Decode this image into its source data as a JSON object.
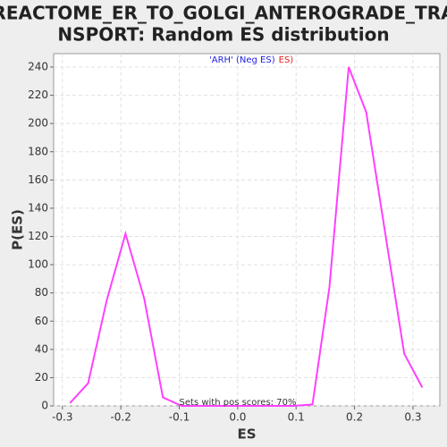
{
  "chart_data": {
    "type": "line",
    "title_lines": [
      "REACTOME_ER_TO_GOLGI_ANTEROGRADE_TRA",
      "NSPORT: Random ES distribution"
    ],
    "xlabel": "ES",
    "ylabel": "P(ES)",
    "legend": [
      {
        "text": "'ARH' (Neg ES)",
        "color": "#2020e0"
      },
      {
        "text": "ES)",
        "color": "#e02020"
      }
    ],
    "annotation": "Sets with pos scores: 70%",
    "x": [
      -0.287,
      -0.256,
      -0.224,
      -0.192,
      -0.16,
      -0.128,
      -0.096,
      -0.064,
      -0.032,
      0,
      0.032,
      0.064,
      0.096,
      0.128,
      0.157,
      0.19,
      0.22,
      0.253,
      0.285,
      0.316
    ],
    "values": [
      2,
      16,
      75,
      122,
      76,
      6,
      0,
      0,
      0,
      0,
      0,
      0,
      0,
      1,
      84,
      240,
      208,
      121,
      37,
      13
    ],
    "color": "#ff40ff",
    "xlim": [
      -0.315,
      0.346
    ],
    "ylim": [
      0,
      249.5
    ],
    "xticks": [
      -0.3,
      -0.2,
      -0.1,
      {
        "value": 0,
        "label": "0.0"
      },
      0.1,
      0.2,
      0.3
    ],
    "yticks": [
      0,
      20,
      40,
      60,
      80,
      100,
      120,
      140,
      160,
      180,
      200,
      220,
      240
    ],
    "grid": true
  }
}
